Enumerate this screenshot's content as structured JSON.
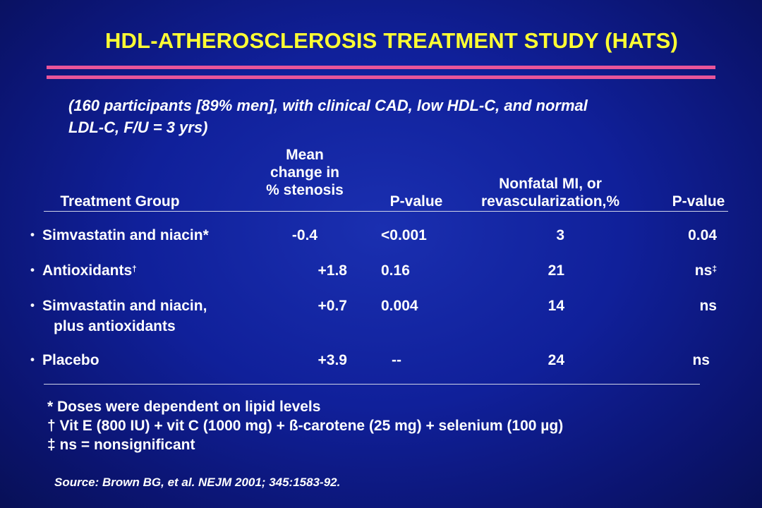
{
  "title": "HDL-ATHEROSCLEROSIS  TREATMENT STUDY (HATS)",
  "subtitle": {
    "line1": "(160 participants [89% men], with clinical CAD, low HDL-C, and normal",
    "line2": "LDL-C, F/U = 3 yrs)"
  },
  "table": {
    "headers": {
      "group": "Treatment Group",
      "mean_change": [
        "Mean",
        "change in",
        "% stenosis"
      ],
      "pvalue1": "P-value",
      "events": [
        "Nonfatal MI, or",
        "revascularization,%"
      ],
      "pvalue2": "P-value"
    },
    "rows": [
      {
        "group": "Simvastatin and niacin*",
        "group_line2": "",
        "change": "-0.4",
        "p1": "<0.001",
        "events": "3",
        "p2": "0.04"
      },
      {
        "group": "Antioxidants",
        "sup": "†",
        "group_line2": "",
        "change": "+1.8",
        "p1": "0.16",
        "events": "21",
        "p2": "ns",
        "p2_sup": "‡"
      },
      {
        "group": "Simvastatin and niacin,",
        "group_line2": "plus antioxidants",
        "change": "+0.7",
        "p1": "0.004",
        "events": "14",
        "p2": "ns"
      },
      {
        "group": "Placebo",
        "group_line2": "",
        "change": "+3.9",
        "p1": "--",
        "events": "24",
        "p2": "ns"
      }
    ]
  },
  "footnotes": [
    "* Doses were dependent on lipid levels",
    "† Vit E (800 IU) + vit C (1000 mg) + ß-carotene (25 mg) + selenium (100 µg)",
    "‡ ns = nonsignificant"
  ],
  "source": "Source:  Brown BG, et al.  NEJM 2001; 345:1583-92.",
  "colors": {
    "title": "#ffff33",
    "accent_bar": "#e8559a",
    "background": "#10209a",
    "text": "#ffffff"
  }
}
